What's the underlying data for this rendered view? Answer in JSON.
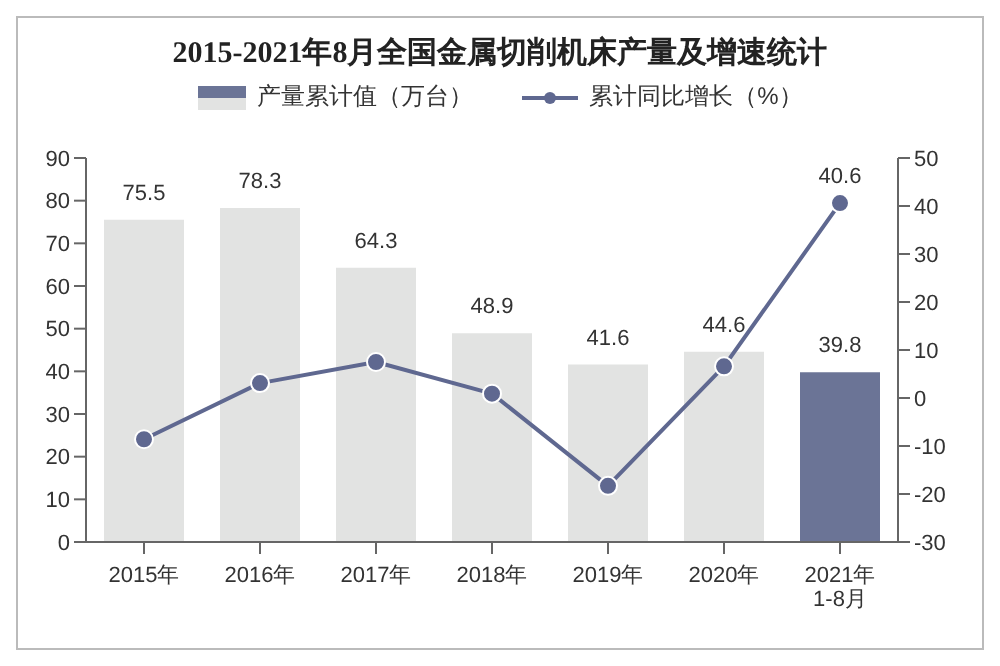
{
  "chart_data": {
    "type": "bar",
    "title": "2015-2021年8月全国金属切削机床产量及增速统计",
    "categories": [
      "2015年",
      "2016年",
      "2017年",
      "2018年",
      "2019年",
      "2020年",
      "2021年 1-8月"
    ],
    "series": [
      {
        "name": "产量累计值（万台）",
        "color": "#e2e3e2",
        "colors": [
          "#e2e3e2",
          "#e2e3e2",
          "#e2e3e2",
          "#e2e3e2",
          "#e2e3e2",
          "#e2e3e2",
          "#6b7496"
        ],
        "values": [
          75.5,
          78.3,
          64.3,
          48.9,
          41.6,
          44.6,
          39.8
        ],
        "value_labels": [
          "75.5",
          "78.3",
          "64.3",
          "48.9",
          "41.6",
          "44.6",
          "39.8"
        ]
      },
      {
        "name": "累计同比增长（%）",
        "type": "line",
        "axis": "y2",
        "color": "#5f6890",
        "values": [
          -8.6,
          3.1,
          7.5,
          0.9,
          -18.3,
          6.6,
          40.6
        ],
        "value_labels": [
          null,
          null,
          null,
          null,
          null,
          null,
          "40.6"
        ]
      }
    ],
    "ylim": [
      0,
      90
    ],
    "yticks": [
      0,
      10,
      20,
      30,
      40,
      50,
      60,
      70,
      80,
      90
    ],
    "y2lim": [
      -30,
      50
    ],
    "y2ticks": [
      -30,
      -20,
      -10,
      0,
      10,
      20,
      30,
      40,
      50
    ],
    "grid": false,
    "legend": "top",
    "marker": "circle",
    "line_style": "solid"
  }
}
